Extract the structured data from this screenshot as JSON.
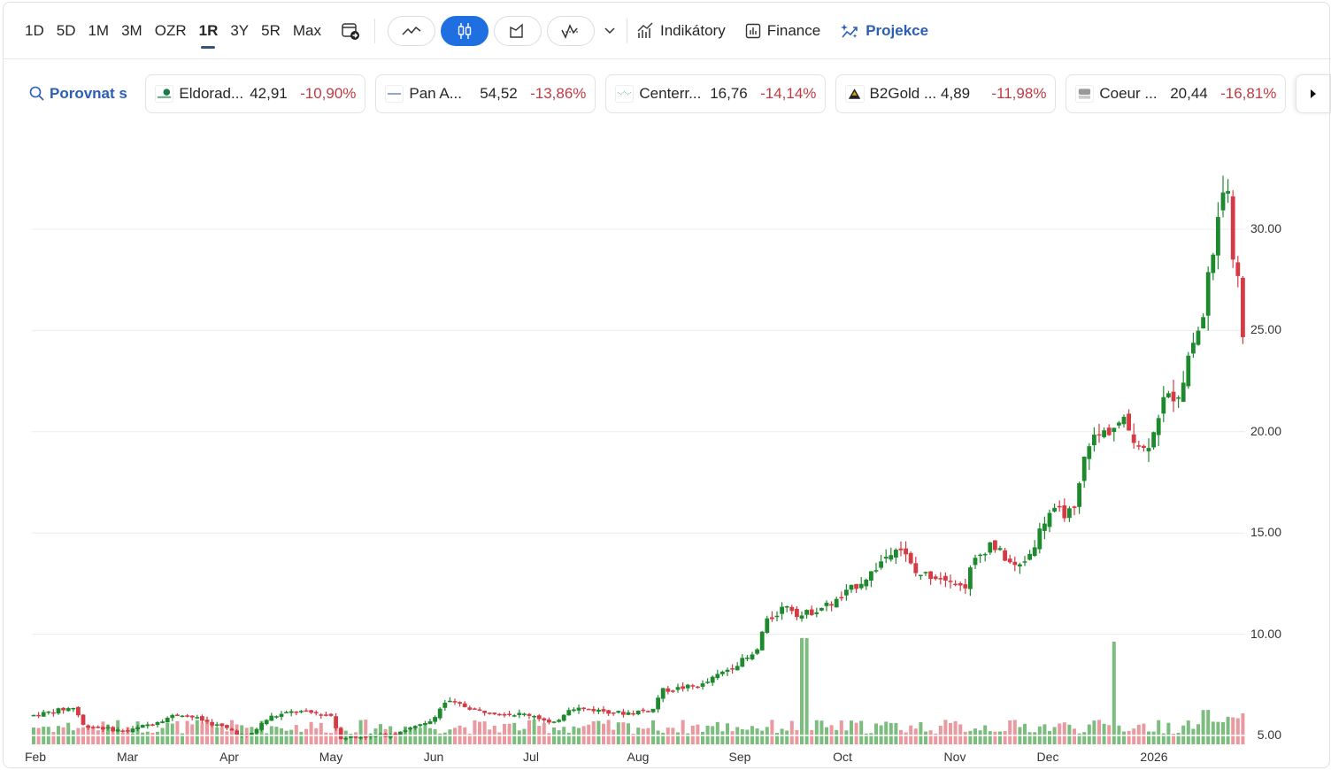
{
  "toolbar": {
    "ranges": [
      "1D",
      "5D",
      "1M",
      "3M",
      "OZR",
      "1R",
      "3Y",
      "5R",
      "Max"
    ],
    "active_range": "1R",
    "chart_types": [
      {
        "name": "line-chart",
        "active": false
      },
      {
        "name": "candlestick-chart",
        "active": true
      },
      {
        "name": "area-chart",
        "active": false
      },
      {
        "name": "baseline-chart",
        "active": false
      }
    ],
    "indicators_label": "Indikátory",
    "finance_label": "Finance",
    "projection_label": "Projekce"
  },
  "compare": {
    "label": "Porovnat s",
    "chips": [
      {
        "name": "Eldorad...",
        "price": "42,91",
        "change": "-10,90%"
      },
      {
        "name": "Pan A...",
        "price": "54,52",
        "change": "-13,86%"
      },
      {
        "name": "Centerr...",
        "price": "16,76",
        "change": "-14,14%"
      },
      {
        "name": "B2Gold ...",
        "price": "4,89",
        "change": "-11,98%"
      },
      {
        "name": "Coeur ...",
        "price": "20,44",
        "change": "-16,81%"
      }
    ]
  },
  "colors": {
    "up": "#1e8a2e",
    "down": "#d63a44",
    "vol_up": "#7cbd7f",
    "vol_down": "#e99aa0",
    "accent": "#2a5fb4",
    "active_btn": "#1f6fe0",
    "negative_text": "#c23a43"
  },
  "chart_data": {
    "type": "candlestick",
    "title": "",
    "xlabel": "",
    "ylabel": "",
    "ylim": [
      4.5,
      34.5
    ],
    "y_ticks": [
      "30.00",
      "25.00",
      "20.00",
      "15.00",
      "10.00",
      "5.00"
    ],
    "x_ticks": [
      "Feb",
      "Mar",
      "Apr",
      "May",
      "Jun",
      "Jul",
      "Aug",
      "Sep",
      "Oct",
      "Nov",
      "Dec",
      "2026"
    ],
    "grid": "horizontal",
    "volume_bars": true,
    "approx_close_by_month": {
      "Feb": 6.2,
      "Mar": 5.2,
      "Apr": 5.8,
      "May": 5.0,
      "Jun": 6.3,
      "Jul": 5.9,
      "Aug": 7.5,
      "Sep": 10.5,
      "Oct": 13.0,
      "Nov": 13.5,
      "Dec": 17.5,
      "Jan 2026": 22.0
    },
    "peak": 33.9,
    "last": 22.3,
    "volume_spikes": [
      {
        "date": "Sep",
        "relative": 1.0
      },
      {
        "date": "Dec",
        "relative": 0.95
      }
    ]
  }
}
